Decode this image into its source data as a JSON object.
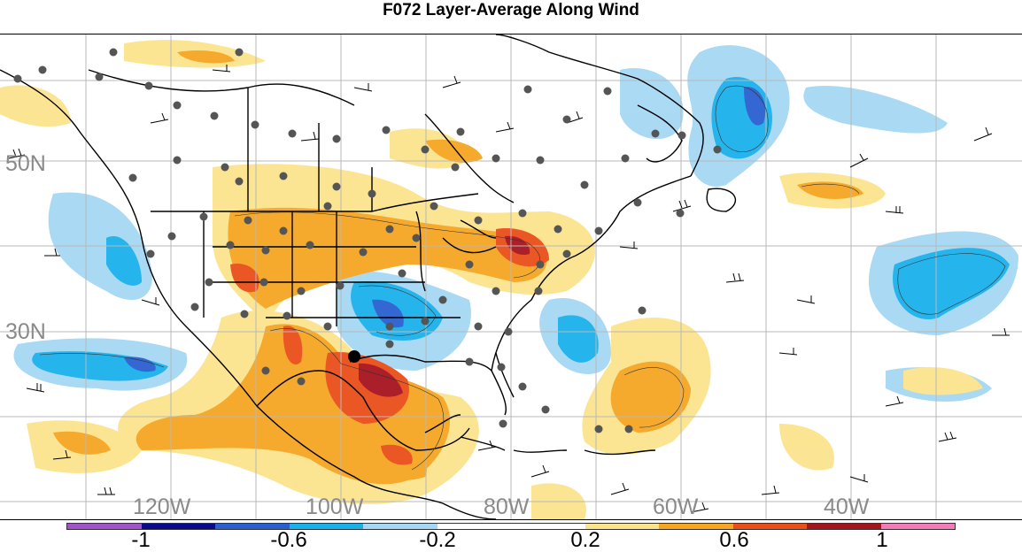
{
  "title": "F072 Layer-Average Along Wind",
  "latitude_labels": [
    "50N",
    "30N"
  ],
  "longitude_labels": [
    "120W",
    "100W",
    "80W",
    "60W",
    "40W"
  ],
  "colorbar": {
    "colors": [
      "#a154c8",
      "#0a0a8c",
      "#2a5fd0",
      "#1ab0ea",
      "#a6d8f4",
      "#ffffff",
      "#ffffff",
      "#fbe48e",
      "#f5a623",
      "#ea4e1a",
      "#a6141e",
      "#f07cb8"
    ],
    "tick_labels": [
      "-1",
      "-0.6",
      "-0.2",
      "0.2",
      "0.6",
      "1"
    ]
  }
}
